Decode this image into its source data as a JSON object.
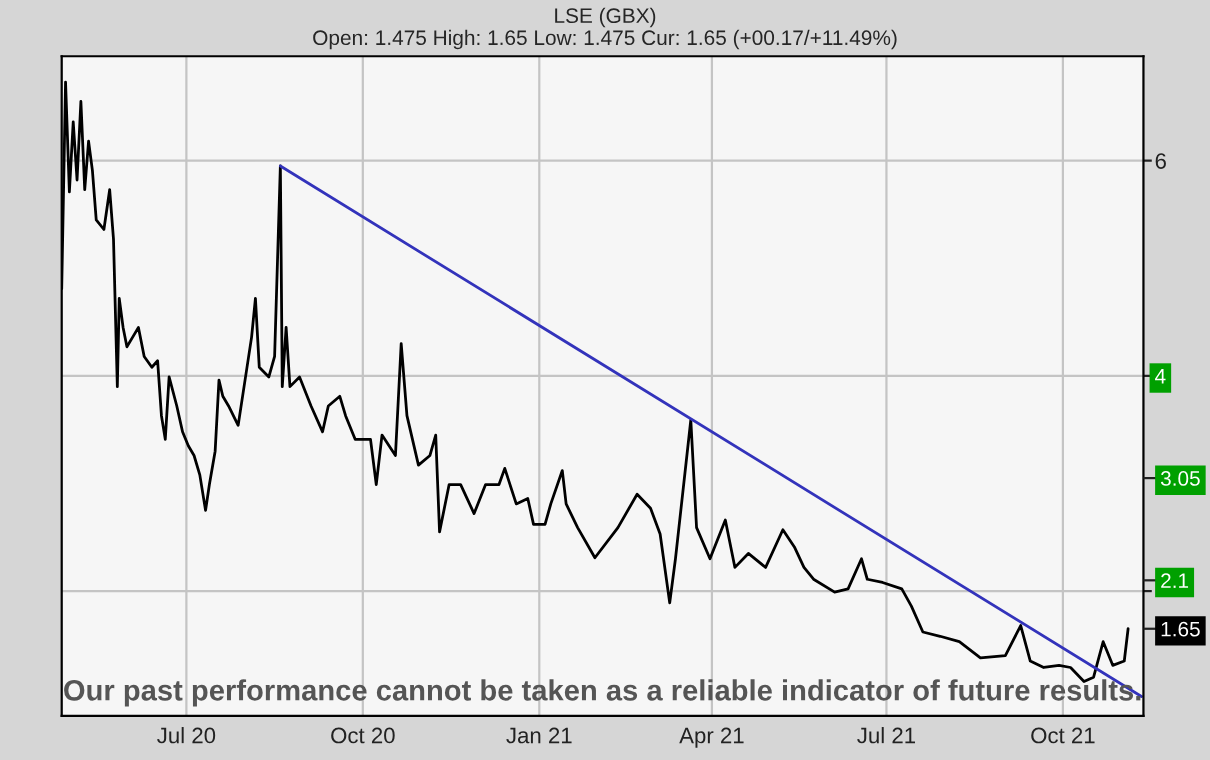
{
  "chart_data": {
    "type": "line",
    "title": "LSE (GBX)",
    "subtitle": "Open: 1.475 High: 1.65 Low: 1.475 Cur: 1.65 (+00.17/+11.49%)",
    "series": [
      {
        "color": "#000000",
        "x": [
          "2020-04-27",
          "2020-04-29",
          "2020-05-01",
          "2020-05-03",
          "2020-05-05",
          "2020-05-07",
          "2020-05-09",
          "2020-05-11",
          "2020-05-13",
          "2020-05-15",
          "2020-05-19",
          "2020-05-22",
          "2020-05-24",
          "2020-05-26",
          "2020-05-27",
          "2020-05-29",
          "2020-05-31",
          "2020-06-03",
          "2020-06-06",
          "2020-06-09",
          "2020-06-13",
          "2020-06-16",
          "2020-06-18",
          "2020-06-20",
          "2020-06-22",
          "2020-06-26",
          "2020-06-29",
          "2020-07-02",
          "2020-07-05",
          "2020-07-08",
          "2020-07-11",
          "2020-07-13",
          "2020-07-16",
          "2020-07-18",
          "2020-07-20",
          "2020-07-23",
          "2020-07-28",
          "2020-08-04",
          "2020-08-06",
          "2020-08-08",
          "2020-08-13",
          "2020-08-16",
          "2020-08-19",
          "2020-08-20",
          "2020-08-22",
          "2020-08-24",
          "2020-08-29",
          "2020-09-04",
          "2020-09-10",
          "2020-09-13",
          "2020-09-19",
          "2020-09-22",
          "2020-09-27",
          "2020-10-05",
          "2020-10-08",
          "2020-10-11",
          "2020-10-18",
          "2020-10-21",
          "2020-10-24",
          "2020-10-30",
          "2020-11-05",
          "2020-11-08",
          "2020-11-10",
          "2020-11-15",
          "2020-11-21",
          "2020-11-28",
          "2020-12-04",
          "2020-12-11",
          "2020-12-14",
          "2020-12-20",
          "2020-12-26",
          "2020-12-29",
          "2021-01-04",
          "2021-01-07",
          "2021-01-13",
          "2021-01-15",
          "2021-01-21",
          "2021-01-30",
          "2021-02-11",
          "2021-02-21",
          "2021-02-28",
          "2021-03-05",
          "2021-03-10",
          "2021-03-13",
          "2021-03-21",
          "2021-03-24",
          "2021-03-31",
          "2021-04-08",
          "2021-04-13",
          "2021-04-20",
          "2021-04-29",
          "2021-05-08",
          "2021-05-14",
          "2021-05-19",
          "2021-05-24",
          "2021-06-04",
          "2021-06-11",
          "2021-06-18",
          "2021-06-21",
          "2021-06-29",
          "2021-07-09",
          "2021-07-14",
          "2021-07-20",
          "2021-07-29",
          "2021-08-08",
          "2021-08-19",
          "2021-09-01",
          "2021-09-09",
          "2021-09-14",
          "2021-09-21",
          "2021-09-29",
          "2021-10-05",
          "2021-10-12",
          "2021-10-17",
          "2021-10-22",
          "2021-10-27",
          "2021-11-02",
          "2021-11-04"
        ],
        "values": [
          4.81,
          6.73,
          5.71,
          6.36,
          5.82,
          6.55,
          5.73,
          6.18,
          5.91,
          5.45,
          5.36,
          5.73,
          5.27,
          3.9,
          4.72,
          4.45,
          4.27,
          4.36,
          4.45,
          4.18,
          4.08,
          4.14,
          3.63,
          3.41,
          3.99,
          3.72,
          3.48,
          3.35,
          3.26,
          3.08,
          2.75,
          2.99,
          3.3,
          3.96,
          3.81,
          3.72,
          3.54,
          4.36,
          4.72,
          4.08,
          3.99,
          4.18,
          5.95,
          3.9,
          4.45,
          3.9,
          3.99,
          3.72,
          3.48,
          3.72,
          3.81,
          3.63,
          3.41,
          3.41,
          2.99,
          3.45,
          3.26,
          4.3,
          3.63,
          3.17,
          3.26,
          3.45,
          2.55,
          2.99,
          2.99,
          2.72,
          2.99,
          2.99,
          3.14,
          2.81,
          2.86,
          2.62,
          2.62,
          2.81,
          3.12,
          2.81,
          2.59,
          2.31,
          2.59,
          2.9,
          2.77,
          2.53,
          1.89,
          2.3,
          3.59,
          2.59,
          2.3,
          2.66,
          2.22,
          2.35,
          2.22,
          2.57,
          2.41,
          2.22,
          2.11,
          1.99,
          2.02,
          2.3,
          2.11,
          2.08,
          2.02,
          1.86,
          1.62,
          1.58,
          1.53,
          1.38,
          1.4,
          1.68,
          1.35,
          1.29,
          1.31,
          1.29,
          1.16,
          1.2,
          1.53,
          1.31,
          1.35,
          1.65
        ]
      },
      {
        "color": "#3333bb",
        "x": [
          "2020-08-19",
          "2021-11-11"
        ],
        "values": [
          5.95,
          1.02
        ]
      }
    ],
    "xlim": [
      "2020-04-27",
      "2021-11-12"
    ],
    "xticks": [
      {
        "value": "2020-07-01",
        "label": "Jul 20"
      },
      {
        "value": "2020-10-01",
        "label": "Oct 20"
      },
      {
        "value": "2021-01-01",
        "label": "Jan 21"
      },
      {
        "value": "2021-04-01",
        "label": "Apr 21"
      },
      {
        "value": "2021-07-01",
        "label": "Jul 21"
      },
      {
        "value": "2021-10-01",
        "label": "Oct 21"
      }
    ],
    "ylim": [
      0.84,
      6.97
    ],
    "yticks": [
      {
        "value": 2,
        "label": null
      },
      4,
      6
    ],
    "y2lim": [
      0.84,
      6.97
    ],
    "y2ticks": [
      3.05,
      2.1,
      1.65
    ],
    "annotations": [
      "Our past performance cannot be taken as a reliable indicator of future results."
    ],
    "grid": true
  }
}
